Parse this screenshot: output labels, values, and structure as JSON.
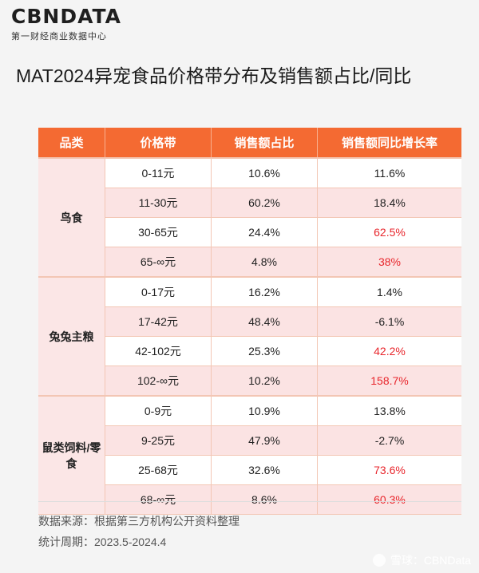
{
  "brand": {
    "logo": "CBNDATA",
    "subtitle": "第一财经商业数据中心"
  },
  "title": "MAT2024异宠食品价格带分布及销售额占比/同比",
  "table": {
    "headers": [
      "品类",
      "价格带",
      "销售额占比",
      "销售额同比增长率"
    ],
    "groups": [
      {
        "category": "鸟食",
        "rows": [
          {
            "band": "0-11元",
            "share": "10.6%",
            "growth": "11.6%",
            "highlight": false
          },
          {
            "band": "11-30元",
            "share": "60.2%",
            "growth": "18.4%",
            "highlight": false
          },
          {
            "band": "30-65元",
            "share": "24.4%",
            "growth": "62.5%",
            "highlight": true
          },
          {
            "band": "65-∞元",
            "share": "4.8%",
            "growth": "38%",
            "highlight": true
          }
        ]
      },
      {
        "category": "兔兔主粮",
        "rows": [
          {
            "band": "0-17元",
            "share": "16.2%",
            "growth": "1.4%",
            "highlight": false
          },
          {
            "band": "17-42元",
            "share": "48.4%",
            "growth": "-6.1%",
            "highlight": false
          },
          {
            "band": "42-102元",
            "share": "25.3%",
            "growth": "42.2%",
            "highlight": true
          },
          {
            "band": "102-∞元",
            "share": "10.2%",
            "growth": "158.7%",
            "highlight": true
          }
        ]
      },
      {
        "category": "鼠类饲料/零食",
        "rows": [
          {
            "band": "0-9元",
            "share": "10.9%",
            "growth": "13.8%",
            "highlight": false
          },
          {
            "band": "9-25元",
            "share": "47.9%",
            "growth": "-2.7%",
            "highlight": false
          },
          {
            "band": "25-68元",
            "share": "32.6%",
            "growth": "73.6%",
            "highlight": true
          },
          {
            "band": "68-∞元",
            "share": "8.6%",
            "growth": "60.3%",
            "highlight": true
          }
        ]
      }
    ]
  },
  "footer": {
    "source": "数据来源：根据第三方机构公开资料整理",
    "period": "统计周期：2023.5-2024.4"
  },
  "watermark": "雪球：CBNData",
  "colors": {
    "header": "#f46a32",
    "highlight": "#e8262c",
    "category_bg": "#fbe6e6",
    "alt_row": "#fbe3e3"
  }
}
